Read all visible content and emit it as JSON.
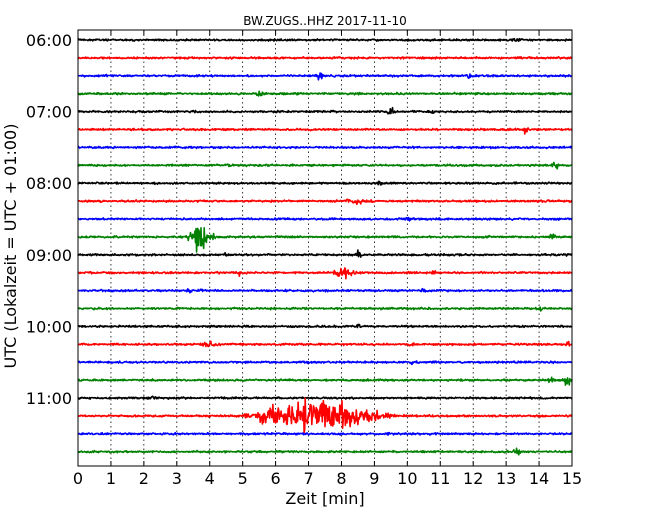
{
  "chart_data": {
    "type": "line",
    "title": "BW.ZUGS..HHZ 2017-11-10",
    "xlabel": "Zeit  [min]",
    "ylabel": "UTC (Lokalzeit = UTC + 01:00)",
    "xlim": [
      0,
      15
    ],
    "xticks": [
      "0",
      "1",
      "2",
      "3",
      "4",
      "5",
      "6",
      "7",
      "8",
      "9",
      "10",
      "11",
      "12",
      "13",
      "14",
      "15"
    ],
    "yticks": [
      "06:00",
      "07:00",
      "08:00",
      "09:00",
      "10:00",
      "11:00"
    ],
    "grid": true,
    "trace_interval_min": 15,
    "first_trace_utc": "06:00",
    "trace_colors": [
      "#000000",
      "#ff0000",
      "#0000ff",
      "#008000"
    ],
    "traces": [
      {
        "start": "06:00",
        "events": [
          {
            "t": 13.3,
            "amp": 0.25,
            "dur": 0.2
          }
        ]
      },
      {
        "start": "06:15",
        "events": []
      },
      {
        "start": "06:30",
        "events": [
          {
            "t": 7.35,
            "amp": 0.9,
            "dur": 0.1
          },
          {
            "t": 11.9,
            "amp": 0.5,
            "dur": 0.1
          }
        ]
      },
      {
        "start": "06:45",
        "events": [
          {
            "t": 5.5,
            "amp": 0.35,
            "dur": 0.15
          }
        ]
      },
      {
        "start": "07:00",
        "events": [
          {
            "t": 3.5,
            "amp": 0.25,
            "dur": 0.1
          },
          {
            "t": 9.5,
            "amp": 0.7,
            "dur": 0.1
          },
          {
            "t": 10.8,
            "amp": 0.25,
            "dur": 0.1
          }
        ]
      },
      {
        "start": "07:15",
        "events": [
          {
            "t": 13.6,
            "amp": 0.45,
            "dur": 0.1
          }
        ]
      },
      {
        "start": "07:30",
        "events": []
      },
      {
        "start": "07:45",
        "events": [
          {
            "t": 4.6,
            "amp": 0.2,
            "dur": 0.1
          },
          {
            "t": 14.5,
            "amp": 0.4,
            "dur": 0.1
          }
        ]
      },
      {
        "start": "08:00",
        "events": [
          {
            "t": 9.2,
            "amp": 0.25,
            "dur": 0.1
          }
        ]
      },
      {
        "start": "08:15",
        "events": [
          {
            "t": 8.5,
            "amp": 0.25,
            "dur": 0.5
          }
        ]
      },
      {
        "start": "08:30",
        "events": [
          {
            "t": 10,
            "amp": 0.35,
            "dur": 0.1
          }
        ]
      },
      {
        "start": "08:45",
        "events": [
          {
            "t": 3.7,
            "amp": 1.7,
            "dur": 0.4
          },
          {
            "t": 14.4,
            "amp": 0.35,
            "dur": 0.1
          }
        ]
      },
      {
        "start": "09:00",
        "events": [
          {
            "t": 8.5,
            "amp": 0.6,
            "dur": 0.1
          },
          {
            "t": 4.5,
            "amp": 0.25,
            "dur": 0.1
          }
        ]
      },
      {
        "start": "09:15",
        "events": [
          {
            "t": 8.1,
            "amp": 0.55,
            "dur": 0.4
          },
          {
            "t": 4.9,
            "amp": 0.3,
            "dur": 0.1
          },
          {
            "t": 10.8,
            "amp": 0.25,
            "dur": 0.1
          }
        ]
      },
      {
        "start": "09:30",
        "events": [
          {
            "t": 3.4,
            "amp": 0.35,
            "dur": 0.1
          },
          {
            "t": 3.7,
            "amp": 0.35,
            "dur": 0.1
          },
          {
            "t": 10.5,
            "amp": 0.3,
            "dur": 0.1
          }
        ]
      },
      {
        "start": "09:45",
        "events": [
          {
            "t": 14.05,
            "amp": 0.5,
            "dur": 0.1
          }
        ]
      },
      {
        "start": "10:00",
        "events": [
          {
            "t": 8.5,
            "amp": 0.4,
            "dur": 0.1
          }
        ]
      },
      {
        "start": "10:15",
        "events": [
          {
            "t": 4,
            "amp": 0.4,
            "dur": 0.3
          },
          {
            "t": 10.1,
            "amp": 0.3,
            "dur": 0.1
          },
          {
            "t": 14.9,
            "amp": 0.2,
            "dur": 0.1
          }
        ]
      },
      {
        "start": "10:30",
        "events": [
          {
            "t": 10.2,
            "amp": 0.3,
            "dur": 0.1
          }
        ]
      },
      {
        "start": "10:45",
        "events": [
          {
            "t": 14.85,
            "amp": 0.6,
            "dur": 0.15
          },
          {
            "t": 14.35,
            "amp": 0.3,
            "dur": 0.1
          }
        ]
      },
      {
        "start": "11:00",
        "events": [
          {
            "t": 2.2,
            "amp": 0.2,
            "dur": 0.2
          }
        ]
      },
      {
        "start": "11:15",
        "events": [
          {
            "t": 5.1,
            "amp": 0.4,
            "dur": 0.1
          },
          {
            "t": 5.8,
            "amp": 1.0,
            "dur": 0.5
          },
          {
            "t": 7.3,
            "amp": 2.5,
            "dur": 1.4
          },
          {
            "t": 8.8,
            "amp": 0.6,
            "dur": 0.8
          }
        ]
      },
      {
        "start": "11:30",
        "events": [
          {
            "t": 9.4,
            "amp": 0.25,
            "dur": 0.1
          }
        ]
      },
      {
        "start": "11:45",
        "events": [
          {
            "t": 13.35,
            "amp": 0.6,
            "dur": 0.15
          }
        ]
      }
    ]
  }
}
